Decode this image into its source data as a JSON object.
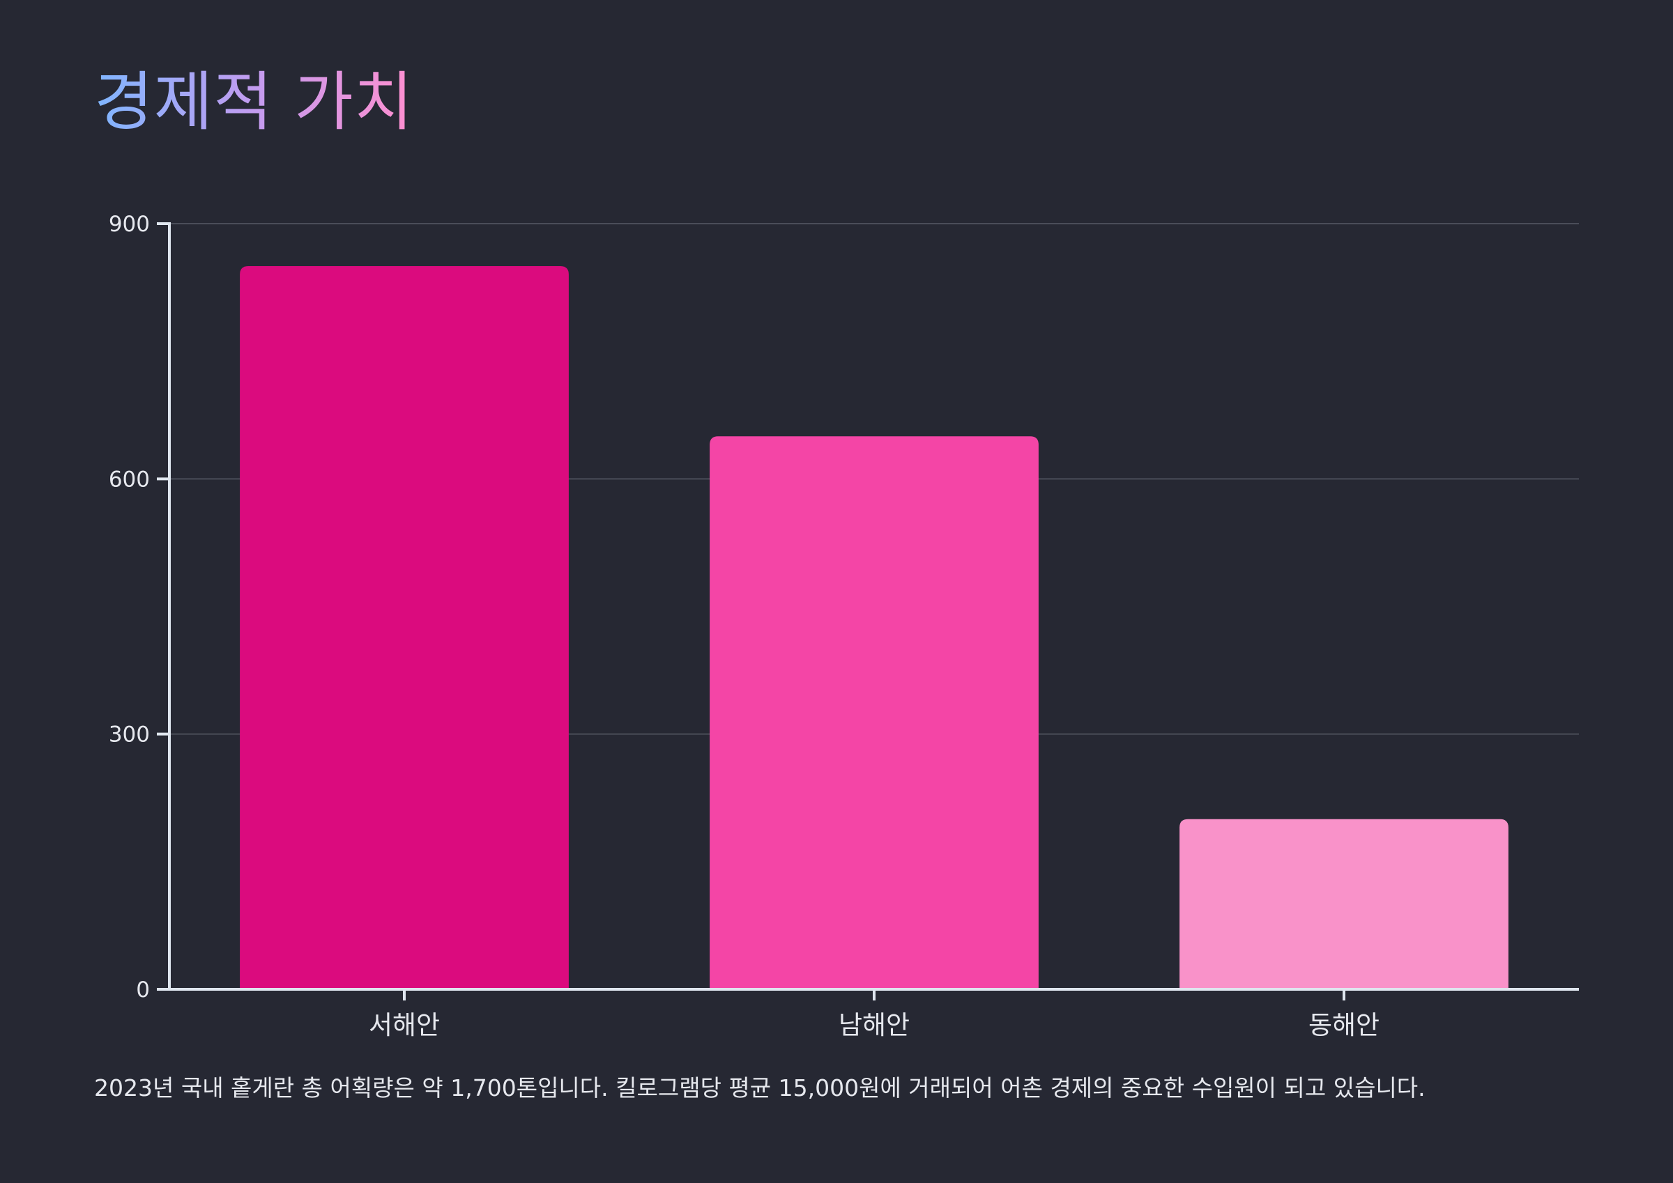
{
  "title": "경제적 가치",
  "caption": "2023년 국내 홑게란 총 어획량은 약 1,700톤입니다. 킬로그램당 평균 15,000원에 거래되어 어촌 경제의 중요한 수입원이 되고 있습니다.",
  "colors": {
    "background": "#262833",
    "axis": "#dfe6ef",
    "grid": "#4a4d59",
    "text": "#e6e8ee",
    "title_gradient": [
      "#7fb6ff",
      "#c39cf0",
      "#ff8fd0"
    ]
  },
  "chart_data": {
    "type": "bar",
    "categories": [
      "서해안",
      "남해안",
      "동해안"
    ],
    "values": [
      850,
      650,
      200
    ],
    "colors": [
      "#db0b7e",
      "#f445a6",
      "#f992c9"
    ],
    "yticks": [
      0,
      300,
      600,
      900
    ],
    "ylim": [
      0,
      900
    ],
    "grid": true,
    "legend": false
  }
}
